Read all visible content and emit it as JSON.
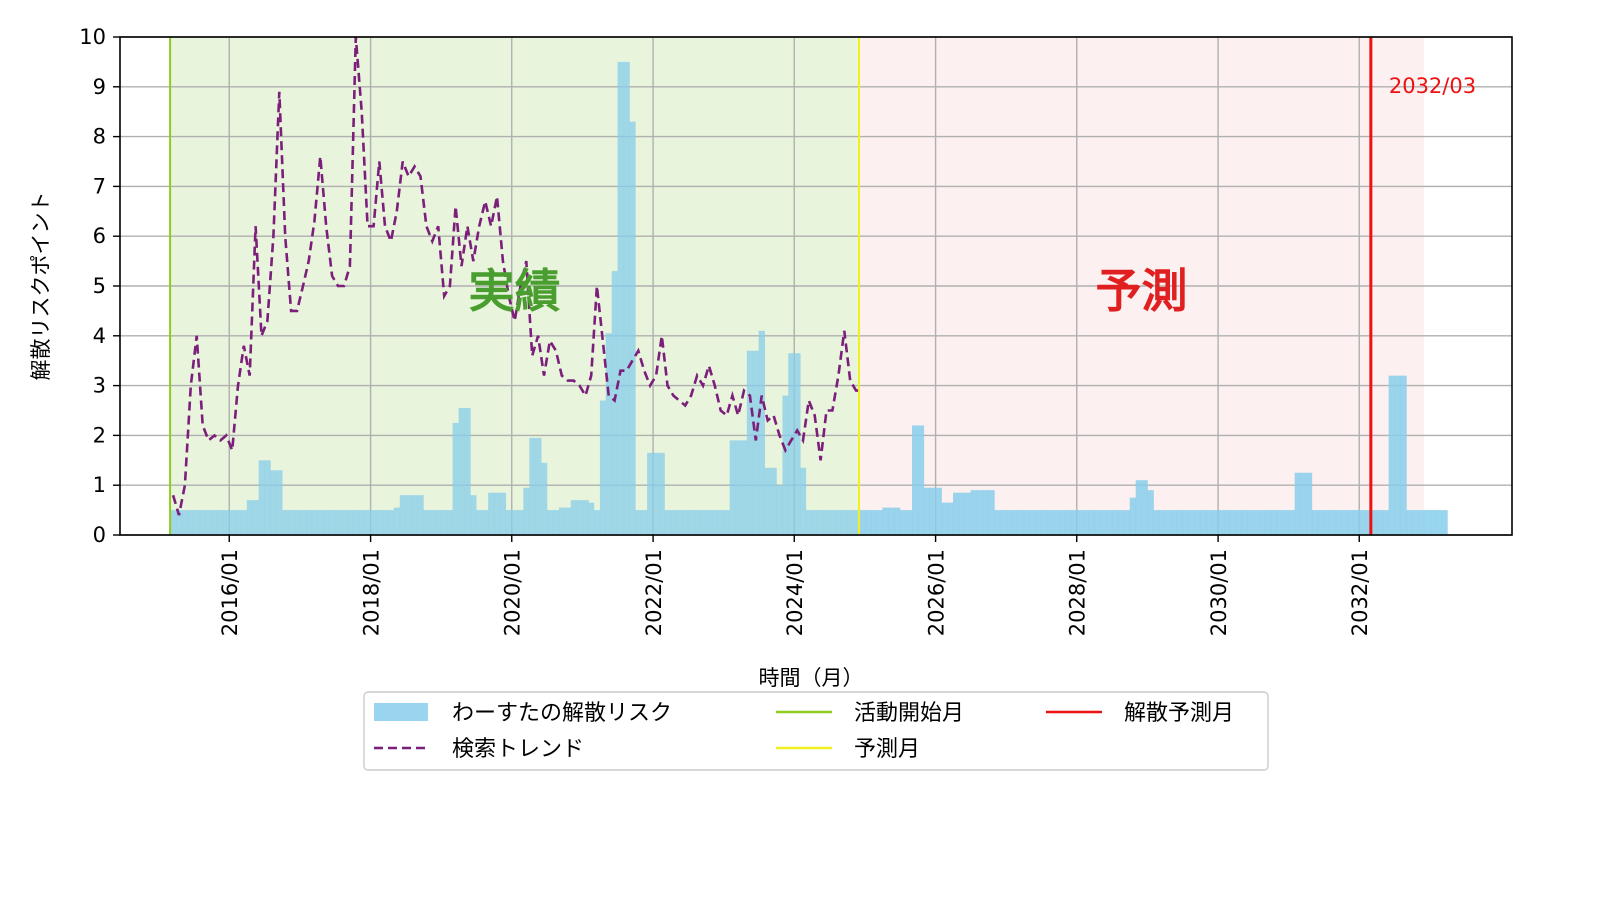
{
  "chart_data": {
    "type": "bar",
    "ylabel": "解散リスクポイント",
    "xlabel": "時間（月）",
    "ylim": [
      0,
      10
    ],
    "xlim": [
      "2014-06-15",
      "2034-03-01"
    ],
    "y_ticks": [
      "0",
      "1",
      "2",
      "3",
      "4",
      "5",
      "6",
      "7",
      "8",
      "9",
      "10"
    ],
    "x_ticks": [
      {
        "date": "2016-01-01",
        "label": "2016/01"
      },
      {
        "date": "2018-01-01",
        "label": "2018/01"
      },
      {
        "date": "2020-01-01",
        "label": "2020/01"
      },
      {
        "date": "2022-01-01",
        "label": "2022/01"
      },
      {
        "date": "2024-01-01",
        "label": "2024/01"
      },
      {
        "date": "2026-01-01",
        "label": "2026/01"
      },
      {
        "date": "2028-01-01",
        "label": "2028/01"
      },
      {
        "date": "2030-01-01",
        "label": "2030/01"
      },
      {
        "date": "2032-01-01",
        "label": "2032/01"
      }
    ],
    "grid": true,
    "regions": [
      {
        "label": "実績",
        "from": "2015-03-01",
        "to": "2024-12-01",
        "color": "#e8f4dc",
        "label_color": "#4a9e2f"
      },
      {
        "label": "予測",
        "from": "2024-12-01",
        "to": "2032-12-01",
        "color": "#fdf0f0",
        "label_color": "#e02020"
      }
    ],
    "vlines": [
      {
        "name": "活動開始月",
        "date": "2015-03-01",
        "color": "#8fcc1e"
      },
      {
        "name": "予測月",
        "date": "2024-12-01",
        "color": "#f0f020"
      },
      {
        "name": "解散予測月",
        "date": "2032-03-01",
        "color": "#ee1111",
        "annotation": "2032/03"
      }
    ],
    "series": [
      {
        "name": "わーすたの解散リスク",
        "kind": "bar",
        "color": "#87ceeb",
        "start": "2015-03",
        "values": [
          0.5,
          0.5,
          0.5,
          0.5,
          0.5,
          0.5,
          0.5,
          0.5,
          0.5,
          0.5,
          0.5,
          0.5,
          0.5,
          0.7,
          0.7,
          1.5,
          1.5,
          1.3,
          1.3,
          0.5,
          0.5,
          0.5,
          0.5,
          0.5,
          0.5,
          0.5,
          0.5,
          0.5,
          0.5,
          0.5,
          0.5,
          0.5,
          0.5,
          0.5,
          0.5,
          0.5,
          0.5,
          0.5,
          0.55,
          0.8,
          0.8,
          0.8,
          0.8,
          0.5,
          0.5,
          0.5,
          0.5,
          0.5,
          2.25,
          2.55,
          2.55,
          0.8,
          0.5,
          0.5,
          0.85,
          0.85,
          0.85,
          0.5,
          0.5,
          0.5,
          0.95,
          1.95,
          1.95,
          1.45,
          0.5,
          0.5,
          0.55,
          0.55,
          0.7,
          0.7,
          0.7,
          0.65,
          0.5,
          2.7,
          4.05,
          5.3,
          9.5,
          9.5,
          8.3,
          0.5,
          0.5,
          1.65,
          1.65,
          1.65,
          0.5,
          0.5,
          0.5,
          0.5,
          0.5,
          0.5,
          0.5,
          0.5,
          0.5,
          0.5,
          0.5,
          1.9,
          1.9,
          1.9,
          3.7,
          3.7,
          4.1,
          1.35,
          1.35,
          1.0,
          2.8,
          3.65,
          3.65,
          1.35,
          0.5,
          0.5,
          0.5,
          0.5,
          0.5,
          0.5,
          0.5,
          0.5,
          0.5,
          0.5,
          0.5,
          0.5,
          0.5,
          0.55,
          0.55,
          0.55,
          0.5,
          0.5,
          2.2,
          2.2,
          0.95,
          0.95,
          0.95,
          0.65,
          0.65,
          0.85,
          0.85,
          0.85,
          0.9,
          0.9,
          0.9,
          0.9,
          0.5,
          0.5,
          0.5,
          0.5,
          0.5,
          0.5,
          0.5,
          0.5,
          0.5,
          0.5,
          0.5,
          0.5,
          0.5,
          0.5,
          0.5,
          0.5,
          0.5,
          0.5,
          0.5,
          0.5,
          0.5,
          0.5,
          0.5,
          0.75,
          1.1,
          1.1,
          0.9,
          0.5,
          0.5,
          0.5,
          0.5,
          0.5,
          0.5,
          0.5,
          0.5,
          0.5,
          0.5,
          0.5,
          0.5,
          0.5,
          0.5,
          0.5,
          0.5,
          0.5,
          0.5,
          0.5,
          0.5,
          0.5,
          0.5,
          0.5,
          0.5,
          1.25,
          1.25,
          1.25,
          0.5,
          0.5,
          0.5,
          0.5,
          0.5,
          0.5,
          0.5,
          0.5,
          0.5,
          0.5,
          0.5,
          0.5,
          0.5,
          3.2,
          3.2,
          3.2,
          0.5,
          0.5,
          0.5,
          0.5,
          0.5,
          0.5,
          0.5
        ]
      },
      {
        "name": "検索トレンド",
        "kind": "line",
        "style": "dashed",
        "color": "#7b1f7b",
        "start": "2015-03",
        "values": [
          0.8,
          0.4,
          1.0,
          3.0,
          4.0,
          2.2,
          1.9,
          2.0,
          1.9,
          2.0,
          1.7,
          3.0,
          3.8,
          3.2,
          6.2,
          4.0,
          4.3,
          6.0,
          8.9,
          6.0,
          4.5,
          4.5,
          5.0,
          5.5,
          6.3,
          7.6,
          6.2,
          5.2,
          5.0,
          5.0,
          5.4,
          10.0,
          8.5,
          6.2,
          6.2,
          7.5,
          6.2,
          5.9,
          6.5,
          7.5,
          7.2,
          7.4,
          7.2,
          6.2,
          5.9,
          6.2,
          4.8,
          5.0,
          6.6,
          5.4,
          6.2,
          5.5,
          6.2,
          6.7,
          6.2,
          6.8,
          5.5,
          4.8,
          4.3,
          5.0,
          5.5,
          3.6,
          4.0,
          3.2,
          3.9,
          3.7,
          3.2,
          3.1,
          3.1,
          3.0,
          2.8,
          3.2,
          5.0,
          3.9,
          2.8,
          2.7,
          3.3,
          3.3,
          3.5,
          3.7,
          3.3,
          3.0,
          3.2,
          4.0,
          3.0,
          2.8,
          2.7,
          2.6,
          2.8,
          3.2,
          3.0,
          3.4,
          3.0,
          2.5,
          2.4,
          2.8,
          2.4,
          2.9,
          2.8,
          1.9,
          2.8,
          2.3,
          2.4,
          2.0,
          1.7,
          1.9,
          2.1,
          1.9,
          2.7,
          2.4,
          1.5,
          2.5,
          2.5,
          3.2,
          4.1,
          3.1,
          2.9,
          2.9
        ]
      }
    ],
    "legend": {
      "placement": "bottom-center",
      "entries": [
        {
          "label": "わーすたの解散リスク",
          "kind": "bar",
          "color": "#87ceeb"
        },
        {
          "label": "活動開始月",
          "kind": "line",
          "color": "#8fcc1e"
        },
        {
          "label": "解散予測月",
          "kind": "line",
          "color": "#ee1111"
        },
        {
          "label": "検索トレンド",
          "kind": "dashed",
          "color": "#7b1f7b"
        },
        {
          "label": "予測月",
          "kind": "line",
          "color": "#f0f020"
        }
      ]
    }
  }
}
